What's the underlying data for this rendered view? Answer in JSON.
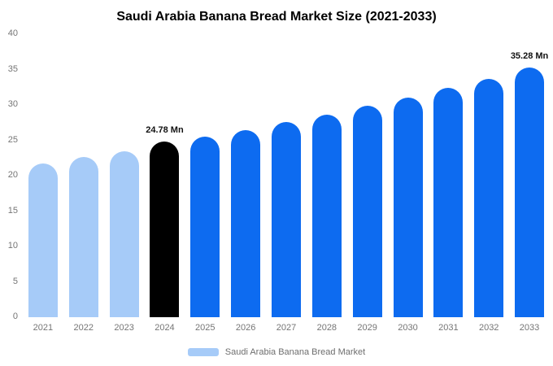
{
  "title": "Saudi Arabia Banana Bread Market Size (2021-2033)",
  "colors": {
    "past": "#a6cbf8",
    "current": "#000000",
    "forecast": "#0d6bf0"
  },
  "y_axis": {
    "ticks": [
      0,
      5,
      10,
      15,
      20,
      25,
      30,
      35,
      40
    ],
    "max": 40
  },
  "legend": {
    "label": "Saudi Arabia Banana Bread Market",
    "swatch_color": "#a6cbf8"
  },
  "chart_data": {
    "type": "bar",
    "title": "Saudi Arabia Banana Bread Market Size (2021-2033)",
    "categories": [
      "2021",
      "2022",
      "2023",
      "2024",
      "2025",
      "2026",
      "2027",
      "2028",
      "2029",
      "2030",
      "2031",
      "2032",
      "2033"
    ],
    "values": [
      21.7,
      22.6,
      23.5,
      24.78,
      25.5,
      26.5,
      27.6,
      28.6,
      29.9,
      31.0,
      32.4,
      33.7,
      35.28
    ],
    "unit": "Mn",
    "xlabel": "",
    "ylabel": "",
    "ylim": [
      0,
      40
    ],
    "y_ticks": [
      0,
      5,
      10,
      15,
      20,
      25,
      30,
      35,
      40
    ],
    "grid": false,
    "legend": [
      "Saudi Arabia Banana Bread Market"
    ],
    "legend_position": "bottom",
    "bar_color_keys": [
      "past",
      "past",
      "past",
      "current",
      "forecast",
      "forecast",
      "forecast",
      "forecast",
      "forecast",
      "forecast",
      "forecast",
      "forecast",
      "forecast"
    ],
    "data_labels": {
      "2024": "24.78 Mn",
      "2033": "35.28 Mn"
    }
  }
}
